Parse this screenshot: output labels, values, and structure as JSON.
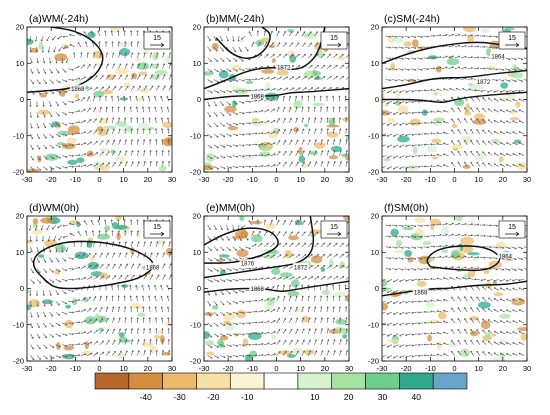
{
  "chart_data": {
    "type": "vector-field-map",
    "xlim": [
      -30,
      30
    ],
    "ylim": [
      -20,
      20
    ],
    "x_ticks": [
      -30,
      -20,
      -10,
      0,
      10,
      20,
      30
    ],
    "y_ticks": [
      -20,
      -10,
      0,
      10,
      20
    ],
    "panels": [
      {
        "id": "a",
        "title": "(a)WM(-24h)",
        "ref_vector": "15",
        "contours": [
          {
            "label": "1868",
            "label_at": [
              -9,
              3
            ],
            "points": [
              [
                -30,
                2
              ],
              [
                -20,
                2.5
              ],
              [
                -12,
                3
              ],
              [
                -5,
                5
              ],
              [
                0,
                8
              ],
              [
                2,
                12
              ],
              [
                -2,
                16
              ],
              [
                -10,
                19
              ],
              [
                -20,
                20
              ]
            ]
          }
        ]
      },
      {
        "id": "b",
        "title": "(b)MM(-24h)",
        "ref_vector": "15",
        "contours": [
          {
            "label": "1872",
            "label_at": [
              3,
              9
            ],
            "points": [
              [
                -30,
                3
              ],
              [
                -22,
                5
              ],
              [
                -12,
                8
              ],
              [
                -2,
                9
              ],
              [
                8,
                8
              ],
              [
                14,
                10
              ],
              [
                18,
                14
              ],
              [
                20,
                20
              ]
            ]
          },
          {
            "label": "",
            "label_at": null,
            "points": [
              [
                -25,
                17
              ],
              [
                -18,
                12
              ],
              [
                -10,
                11
              ],
              [
                -4,
                14
              ],
              [
                -2,
                18
              ],
              [
                -6,
                20
              ]
            ]
          },
          {
            "label": "1868",
            "label_at": [
              -8,
              1
            ],
            "points": [
              [
                -30,
                0
              ],
              [
                -18,
                1
              ],
              [
                -8,
                1
              ],
              [
                0,
                1
              ],
              [
                6,
                2
              ],
              [
                12,
                2
              ],
              [
                30,
                3
              ]
            ]
          }
        ]
      },
      {
        "id": "c",
        "title": "(c)SM(-24h)",
        "ref_vector": "15",
        "contours": [
          {
            "label": "1864",
            "label_at": [
              18,
              12
            ],
            "points": [
              [
                -30,
                10
              ],
              [
                -18,
                13
              ],
              [
                -5,
                15
              ],
              [
                10,
                16
              ],
              [
                20,
                15
              ],
              [
                30,
                14
              ]
            ]
          },
          {
            "label": "1872",
            "label_at": [
              12,
              5
            ],
            "points": [
              [
                -30,
                3
              ],
              [
                -20,
                4
              ],
              [
                -8,
                6
              ],
              [
                5,
                6
              ],
              [
                15,
                7
              ],
              [
                30,
                8
              ]
            ]
          },
          {
            "label": "",
            "label_at": null,
            "points": [
              [
                -30,
                0
              ],
              [
                -15,
                0
              ],
              [
                -5,
                -1
              ],
              [
                0,
                0
              ],
              [
                10,
                1
              ],
              [
                30,
                2
              ]
            ]
          }
        ]
      },
      {
        "id": "d",
        "title": "(d)WM(0h)",
        "ref_vector": "15",
        "contours": [
          {
            "label": "1868",
            "label_at": [
              22,
              6
            ],
            "points": [
              [
                -22,
                2
              ],
              [
                -28,
                6
              ],
              [
                -26,
                10
              ],
              [
                -15,
                13
              ],
              [
                0,
                13
              ],
              [
                14,
                11
              ],
              [
                24,
                7
              ],
              [
                18,
                3
              ],
              [
                5,
                1
              ],
              [
                -8,
                0
              ],
              [
                -18,
                0
              ],
              [
                -22,
                2
              ]
            ]
          }
        ]
      },
      {
        "id": "e",
        "title": "(e)MM(0h)",
        "ref_vector": "15",
        "contours": [
          {
            "label": "1876",
            "label_at": [
              -12,
              7
            ],
            "points": [
              [
                -30,
                12
              ],
              [
                -22,
                15
              ],
              [
                -12,
                17
              ],
              [
                -2,
                16
              ],
              [
                2,
                12
              ],
              [
                -6,
                9
              ],
              [
                -18,
                7
              ],
              [
                -30,
                7
              ]
            ]
          },
          {
            "label": "1872",
            "label_at": [
              10,
              6
            ],
            "points": [
              [
                -30,
                3
              ],
              [
                -20,
                4
              ],
              [
                -10,
                5
              ],
              [
                0,
                6
              ],
              [
                10,
                7
              ],
              [
                16,
                11
              ],
              [
                14,
                20
              ]
            ]
          },
          {
            "label": "1868",
            "label_at": [
              -8,
              0
            ],
            "points": [
              [
                -30,
                -1
              ],
              [
                -18,
                0
              ],
              [
                -5,
                0
              ],
              [
                2,
                -1
              ],
              [
                10,
                0
              ],
              [
                20,
                1
              ],
              [
                30,
                2
              ]
            ]
          }
        ]
      },
      {
        "id": "f",
        "title": "(f)SM(0h)",
        "ref_vector": "15",
        "contours": [
          {
            "label": "1864",
            "label_at": [
              21,
              9
            ],
            "points": [
              [
                -10,
                6
              ],
              [
                -12,
                8
              ],
              [
                -7,
                11
              ],
              [
                5,
                12
              ],
              [
                15,
                11
              ],
              [
                20,
                8
              ],
              [
                14,
                5
              ],
              [
                2,
                5
              ],
              [
                -10,
                6
              ]
            ]
          },
          {
            "label": "1868",
            "label_at": [
              -14,
              -1
            ],
            "points": [
              [
                -30,
                -2
              ],
              [
                -20,
                -1
              ],
              [
                -10,
                0
              ],
              [
                -2,
                0
              ],
              [
                10,
                1
              ],
              [
                20,
                1
              ],
              [
                30,
                2
              ]
            ]
          }
        ]
      }
    ]
  },
  "colorbar": {
    "labels": [
      "-40",
      "-30",
      "-20",
      "-10",
      "10",
      "20",
      "30",
      "40"
    ],
    "colors": [
      "#b8682a",
      "#d48e3e",
      "#ecbb6a",
      "#f5e1a6",
      "#fbf4d4",
      "#ffffff",
      "#d7f2cd",
      "#a8e2a0",
      "#6ccf8a",
      "#2fa98c",
      "#6aa6c9"
    ]
  }
}
